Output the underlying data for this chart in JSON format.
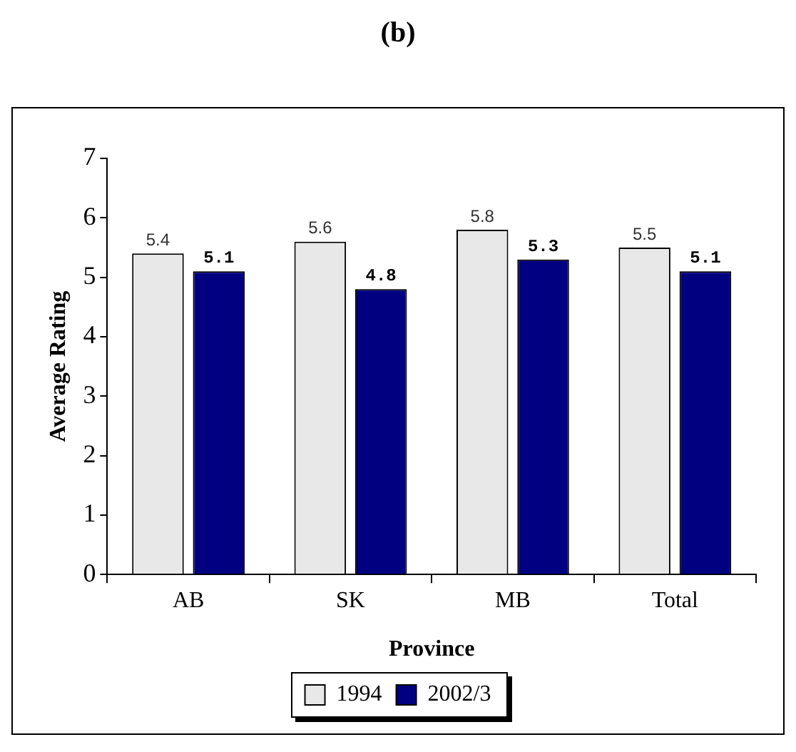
{
  "chart_data": {
    "type": "bar",
    "title": "(b)",
    "xlabel": "Province",
    "ylabel": "Average Rating",
    "categories": [
      "AB",
      "SK",
      "MB",
      "Total"
    ],
    "series": [
      {
        "name": "1994",
        "color": "#e8e8e8",
        "values": [
          5.4,
          5.6,
          5.8,
          5.5
        ]
      },
      {
        "name": "2002/3",
        "color": "#000080",
        "values": [
          5.1,
          4.8,
          5.3,
          5.1
        ]
      }
    ],
    "ylim": [
      0,
      7
    ],
    "yticks": [
      0,
      1,
      2,
      3,
      4,
      5,
      6,
      7
    ],
    "grid": false,
    "legend": "bottom",
    "data_labels": true
  }
}
